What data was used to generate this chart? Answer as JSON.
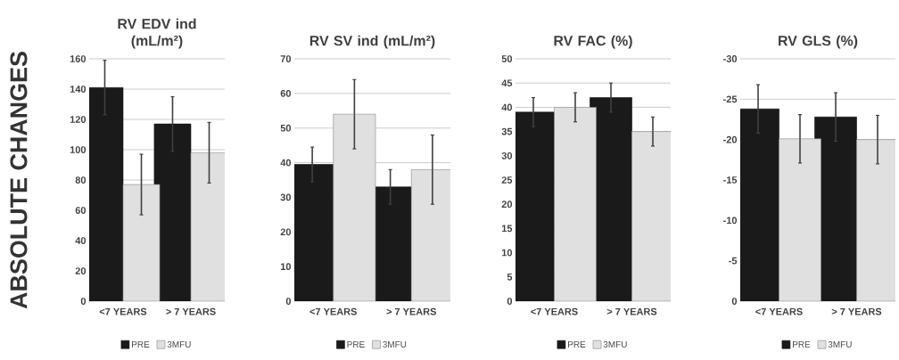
{
  "chart_data": [
    {
      "type": "bar",
      "title": "RV EDV ind (mL/m²)",
      "ylabel": "ABSOLUTE CHANGES",
      "categories": [
        "<7 YEARS",
        "> 7 YEARS"
      ],
      "series": [
        {
          "name": "PRE",
          "color": "#1a1a1a",
          "values": [
            141,
            117
          ],
          "errors": [
            18,
            18
          ]
        },
        {
          "name": "3MFU",
          "color": "#e0e0e0",
          "values": [
            77,
            98
          ],
          "errors": [
            20,
            20
          ]
        }
      ],
      "ylim": [
        0,
        160
      ],
      "yticks": [
        0,
        20,
        40,
        60,
        80,
        100,
        120,
        140,
        160
      ],
      "grid": "y",
      "legend": "bottom"
    },
    {
      "type": "bar",
      "title": "RV SV ind (mL/m²)",
      "categories": [
        "<7 YEARS",
        "> 7 YEARS"
      ],
      "series": [
        {
          "name": "PRE",
          "color": "#1a1a1a",
          "values": [
            39.5,
            33
          ],
          "errors": [
            5,
            5
          ]
        },
        {
          "name": "3MFU",
          "color": "#e0e0e0",
          "values": [
            54,
            38
          ],
          "errors": [
            10,
            10
          ]
        }
      ],
      "ylim": [
        0,
        70
      ],
      "yticks": [
        0,
        10,
        20,
        30,
        40,
        50,
        60,
        70
      ],
      "grid": "y",
      "legend": "bottom"
    },
    {
      "type": "bar",
      "title": "RV FAC (%)",
      "categories": [
        "<7 YEARS",
        "> 7 YEARS"
      ],
      "series": [
        {
          "name": "PRE",
          "color": "#1a1a1a",
          "values": [
            39,
            42
          ],
          "errors": [
            3,
            3
          ]
        },
        {
          "name": "3MFU",
          "color": "#e0e0e0",
          "values": [
            40,
            35
          ],
          "errors": [
            3,
            3
          ]
        }
      ],
      "ylim": [
        0,
        50
      ],
      "yticks": [
        0,
        5,
        10,
        15,
        20,
        25,
        30,
        35,
        40,
        45,
        50
      ],
      "grid": "y",
      "legend": "bottom"
    },
    {
      "type": "bar",
      "title": "RV GLS (%)",
      "categories": [
        "<7 YEARS",
        "> 7 YEARS"
      ],
      "series": [
        {
          "name": "PRE",
          "color": "#1a1a1a",
          "values": [
            -23.8,
            -22.8
          ],
          "errors": [
            3,
            3
          ]
        },
        {
          "name": "3MFU",
          "color": "#e0e0e0",
          "values": [
            -20.1,
            -20
          ],
          "errors": [
            3,
            3
          ]
        }
      ],
      "ylim": [
        0,
        -30
      ],
      "yticks": [
        0,
        -5,
        -10,
        -15,
        -20,
        -25,
        -30
      ],
      "grid": "y",
      "legend": "bottom"
    }
  ]
}
